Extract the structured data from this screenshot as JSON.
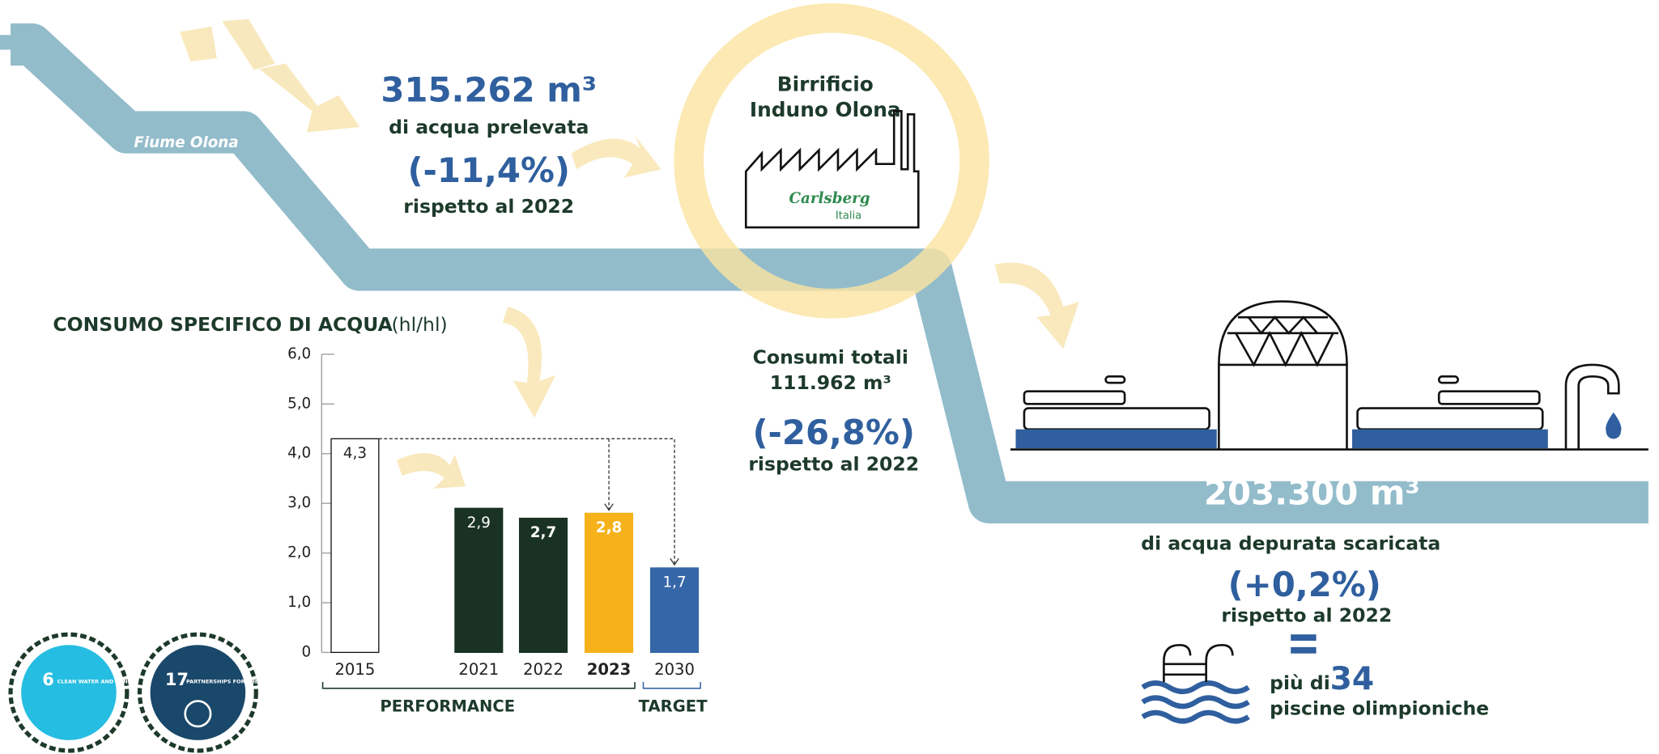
{
  "river": {
    "label": "Fiume Olona"
  },
  "intake": {
    "amount": "315.262 m³",
    "caption": "di acqua prelevata",
    "change": "(-11,4%)",
    "comparison": "rispetto al 2022"
  },
  "brewery": {
    "line1": "Birrificio",
    "line2": "Induno Olona",
    "brand": "Carlsberg",
    "brand_sub": "Italia"
  },
  "consumption": {
    "caption": "Consumi totali",
    "amount": "111.962 m³",
    "change": "(-26,8%)",
    "comparison": "rispetto al 2022"
  },
  "discharge": {
    "amount": "203.300 m³",
    "caption": "di acqua depurata scaricata",
    "change": "(+0,2%)",
    "comparison": "rispetto al 2022",
    "equivalent_prefix": "più di",
    "equivalent_number": "34",
    "equivalent_suffix": "piscine olimpioniche"
  },
  "sdg": [
    {
      "number": "6",
      "label": "CLEAN WATER AND SANITATION"
    },
    {
      "number": "17",
      "label": "PARTNERSHIPS FOR THE GOALS"
    }
  ],
  "chart_data": {
    "type": "bar",
    "title": "CONSUMO SPECIFICO DI ACQUA",
    "unit": "(hl/hl)",
    "categories": [
      "2015",
      "2021",
      "2022",
      "2023",
      "2030"
    ],
    "values": [
      4.3,
      2.9,
      2.7,
      2.8,
      1.7
    ],
    "value_labels": [
      "4,3",
      "2,9",
      "2,7",
      "2,8",
      "1,7"
    ],
    "colors": [
      "#ffffff",
      "#1a3224",
      "#1a3224",
      "#f5b21b",
      "#3566a8"
    ],
    "ylim": [
      0,
      6
    ],
    "yticks": [
      0,
      {
        "value": 1,
        "label": "1,0"
      },
      {
        "value": 2,
        "label": "2,0"
      },
      {
        "value": 3,
        "label": "3,0"
      },
      {
        "value": 4,
        "label": "4,0"
      },
      {
        "value": 5,
        "label": "5,0"
      },
      {
        "value": 6,
        "label": "6,0"
      }
    ],
    "groups": [
      "PERFORMANCE",
      "TARGET"
    ]
  }
}
